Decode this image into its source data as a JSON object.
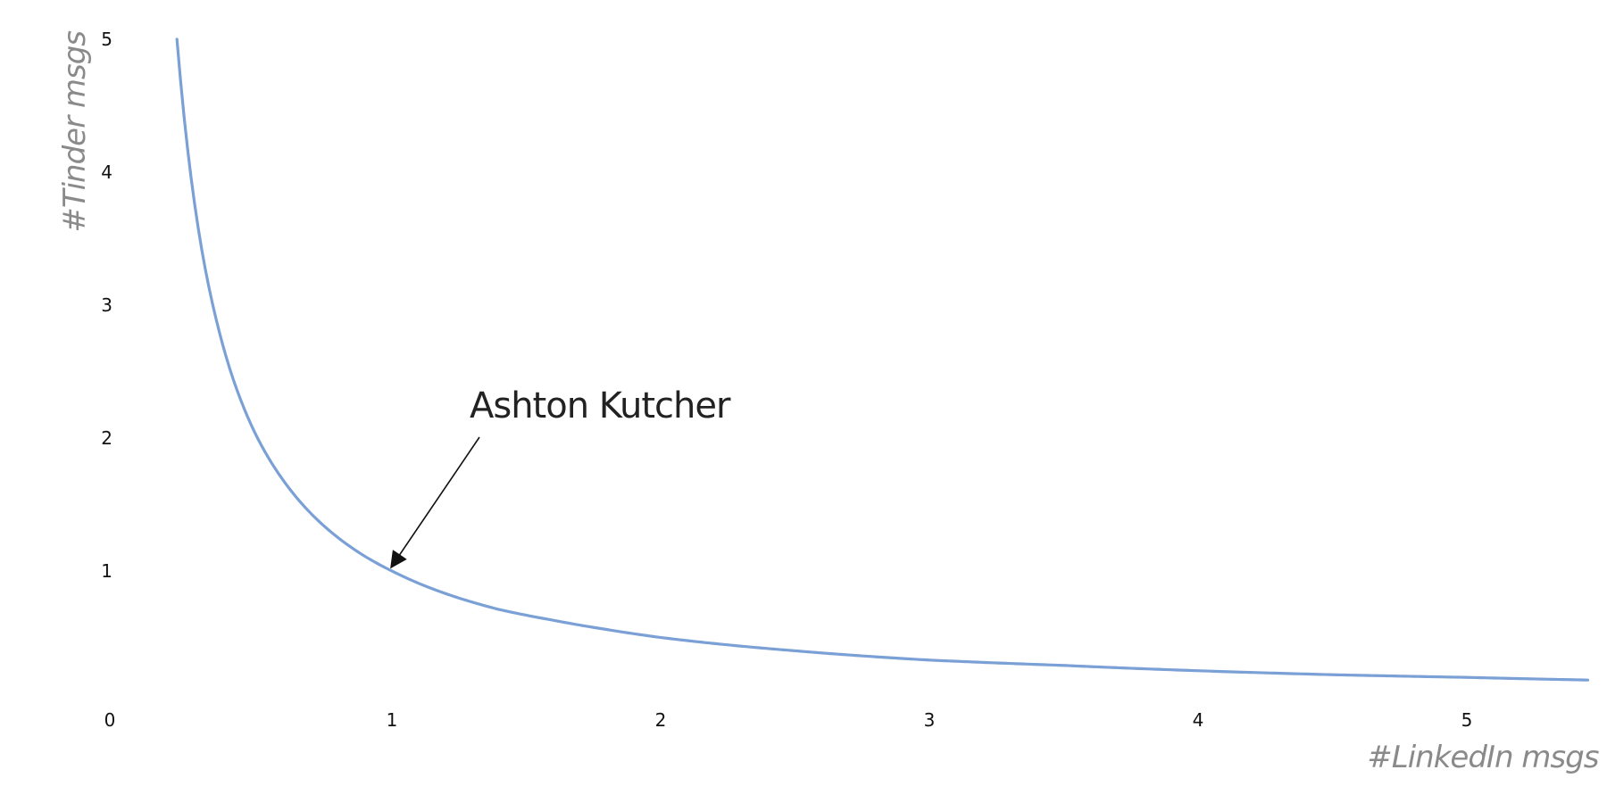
{
  "chart_data": {
    "type": "line",
    "xlabel": "#LinkedIn msgs",
    "ylabel": "#Tinder msgs",
    "xlim": [
      -0.35,
      5.45
    ],
    "ylim": [
      -0.65,
      5.1
    ],
    "x_ticks": [
      "0",
      "1",
      "2",
      "3",
      "4",
      "5"
    ],
    "y_ticks": [
      "1",
      "2",
      "3",
      "4",
      "5"
    ],
    "grid": false,
    "series": [
      {
        "color": "#7aa0d6",
        "x": [
          0.2,
          0.22,
          0.25,
          0.3,
          0.35,
          0.4,
          0.5,
          0.6,
          0.7,
          0.8,
          0.9,
          1,
          1.2,
          1.4,
          1.6,
          1.8,
          2,
          2.5,
          3,
          3.5,
          4,
          4.5,
          5,
          5.45
        ],
        "values": [
          5,
          4.55,
          4,
          3.33,
          2.86,
          2.5,
          2,
          1.67,
          1.43,
          1.25,
          1.11,
          1,
          0.83,
          0.71,
          0.63,
          0.56,
          0.5,
          0.4,
          0.33,
          0.29,
          0.25,
          0.22,
          0.2,
          0.18
        ]
      }
    ],
    "annotations": [
      {
        "text": "Ashton Kutcher",
        "x": 1,
        "y": 1
      }
    ]
  }
}
